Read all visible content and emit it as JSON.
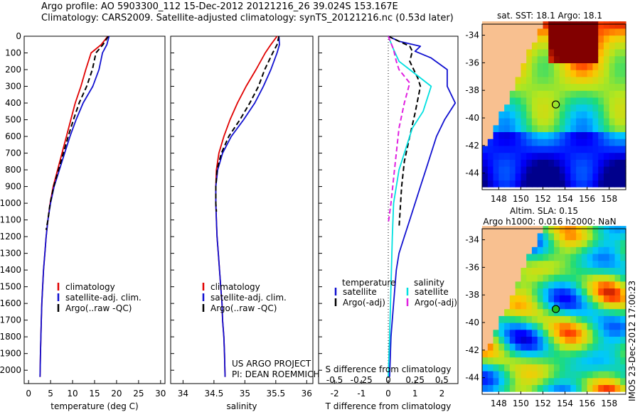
{
  "header": {
    "line1": "Argo profile: AO 5903300_112 15-Dec-2012 20121216_26 39.024S 153.167E",
    "line2": "Climatology: CARS2009. Satellite-adjusted climatology: synTS_20121216.nc (0.53d later)"
  },
  "colors": {
    "climatology": "#e00000",
    "satellite": "#1010d0",
    "argo": "#000000",
    "cyan": "#00e0e0",
    "magenta": "#e020e0",
    "land": "#f8c090"
  },
  "chart_data": [
    {
      "type": "line",
      "title": "",
      "xlabel": "temperature (deg C)",
      "xlim": [
        -1,
        31
      ],
      "ylim": [
        2080,
        0
      ],
      "xticks": [
        0,
        5,
        10,
        15,
        20,
        25,
        30
      ],
      "xtick_labels": [
        "0",
        "5",
        "10",
        "15",
        "20",
        "25",
        "30"
      ],
      "yticks": [
        0,
        100,
        200,
        300,
        400,
        500,
        600,
        700,
        800,
        900,
        1000,
        1100,
        1200,
        1300,
        1400,
        1500,
        1600,
        1700,
        1800,
        1900,
        2000
      ],
      "ytick_labels": [
        "0",
        "100",
        "200",
        "300",
        "400",
        "500",
        "600",
        "700",
        "800",
        "900",
        "1000",
        "1100",
        "1200",
        "1300",
        "1400",
        "1500",
        "1600",
        "1700",
        "1800",
        "1900",
        "2000"
      ],
      "legend": {
        "position": "bottom-left",
        "entries": [
          "climatology",
          "satellite-adj. clim.",
          "Argo(..raw -QC)"
        ]
      },
      "series": [
        {
          "name": "climatology",
          "color": "#e00000",
          "dash": "",
          "x": [
            18.0,
            16.5,
            14.2,
            13.0,
            11.9,
            10.6,
            9.6,
            8.6,
            7.6,
            6.6,
            5.6,
            4.9,
            4.4,
            4.0,
            3.7,
            3.4,
            3.2,
            3.0,
            2.9,
            2.8,
            2.7,
            2.6
          ],
          "y": [
            0,
            50,
            100,
            200,
            300,
            400,
            500,
            600,
            700,
            800,
            900,
            1000,
            1100,
            1200,
            1300,
            1400,
            1500,
            1600,
            1700,
            1800,
            1900,
            2040
          ]
        },
        {
          "name": "satellite-adj. clim.",
          "color": "#1010d0",
          "dash": "",
          "x": [
            18.3,
            17.8,
            16.8,
            16.0,
            14.6,
            12.4,
            10.8,
            9.4,
            8.2,
            7.0,
            5.8,
            5.0,
            4.4,
            4.0,
            3.7,
            3.4,
            3.2,
            3.0,
            2.9,
            2.8,
            2.7,
            2.6
          ],
          "y": [
            0,
            50,
            100,
            200,
            300,
            400,
            500,
            600,
            700,
            800,
            900,
            1000,
            1100,
            1200,
            1300,
            1400,
            1500,
            1600,
            1700,
            1800,
            1900,
            2040
          ]
        },
        {
          "name": "Argo(..raw -QC)",
          "color": "#000000",
          "dash": "7,4",
          "x": [
            18.1,
            16.9,
            15.3,
            14.5,
            13.2,
            11.5,
            10.2,
            9.0,
            7.9,
            6.8,
            5.7,
            4.9,
            4.4,
            4.0
          ],
          "y": [
            0,
            50,
            100,
            200,
            300,
            400,
            500,
            600,
            700,
            800,
            900,
            1000,
            1100,
            1160
          ]
        }
      ]
    },
    {
      "type": "line",
      "title": "",
      "xlabel": "salinity",
      "xlim": [
        33.8,
        36.1
      ],
      "ylim": [
        2080,
        0
      ],
      "xticks": [
        34,
        34.5,
        35,
        35.5,
        36
      ],
      "xtick_labels": [
        "34",
        "34.5",
        "35",
        "35.5",
        "36"
      ],
      "legend": {
        "position": "bottom-left",
        "entries": [
          "climatology",
          "satellite-adj. clim.",
          "Argo(..raw -QC)"
        ]
      },
      "annotation": [
        "US ARGO PROJECT",
        "PI: DEAN ROEMMICH"
      ],
      "series": [
        {
          "name": "climatology",
          "color": "#e00000",
          "dash": "",
          "x": [
            35.52,
            35.42,
            35.33,
            35.18,
            35.02,
            34.88,
            34.76,
            34.66,
            34.58,
            34.54,
            34.53,
            34.53,
            34.54,
            34.55,
            34.57,
            34.59,
            34.61,
            34.63,
            34.64,
            34.66,
            34.67,
            34.68
          ],
          "y": [
            0,
            50,
            100,
            200,
            300,
            400,
            500,
            600,
            700,
            800,
            900,
            1000,
            1100,
            1200,
            1300,
            1400,
            1500,
            1600,
            1700,
            1800,
            1900,
            2040
          ]
        },
        {
          "name": "satellite-adj. clim.",
          "color": "#1010d0",
          "dash": "",
          "x": [
            35.55,
            35.56,
            35.52,
            35.42,
            35.3,
            35.16,
            34.98,
            34.78,
            34.64,
            34.56,
            34.53,
            34.53,
            34.54,
            34.55,
            34.57,
            34.59,
            34.61,
            34.63,
            34.64,
            34.66,
            34.67,
            34.68
          ],
          "y": [
            0,
            50,
            100,
            200,
            300,
            400,
            500,
            600,
            700,
            800,
            900,
            1000,
            1100,
            1200,
            1300,
            1400,
            1500,
            1600,
            1700,
            1800,
            1900,
            2040
          ]
        },
        {
          "name": "Argo(..raw -QC)",
          "color": "#000000",
          "dash": "7,4",
          "x": [
            35.55,
            35.52,
            35.45,
            35.32,
            35.22,
            35.08,
            34.92,
            34.74,
            34.62,
            34.55,
            34.53,
            34.53,
            34.54
          ],
          "y": [
            0,
            50,
            100,
            200,
            300,
            400,
            500,
            600,
            700,
            800,
            900,
            1000,
            1050
          ]
        }
      ]
    },
    {
      "type": "line",
      "title": "",
      "xlabel": "T difference from climatology",
      "xlabel_top": "S difference from climatology",
      "xlim": [
        -2.6,
        2.6
      ],
      "ylim": [
        2080,
        0
      ],
      "xticks": [
        -2,
        -1,
        0,
        1,
        2
      ],
      "xtick_labels": [
        "-2",
        "-1",
        "0",
        "1",
        "2"
      ],
      "xticks_top": [
        -0.5,
        -0.25,
        0,
        0.25,
        0.5
      ],
      "xtick_labels_top": [
        "-0.5",
        "-0.25",
        "0",
        "0.25",
        "0.5"
      ],
      "legend": {
        "position": "bottom",
        "headers": [
          "temperature",
          "salinity"
        ],
        "entries": [
          "satellite",
          "Argo(-adj)",
          "satellite",
          "Argo(-adj)"
        ]
      },
      "series": [
        {
          "name": "T satellite",
          "color": "#1010d0",
          "dash": "",
          "x": [
            0,
            0.4,
            1.2,
            1.0,
            1.6,
            2.2,
            2.2,
            2.5,
            2.1,
            1.8,
            1.6,
            1.4,
            1.2,
            1.0,
            0.8,
            0.6,
            0.4,
            0.3,
            0.2,
            0.1,
            0.05
          ],
          "y": [
            0,
            30,
            60,
            90,
            130,
            200,
            300,
            400,
            500,
            600,
            700,
            800,
            900,
            1000,
            1100,
            1200,
            1300,
            1400,
            1600,
            1800,
            2040
          ]
        },
        {
          "name": "T Argo(-adj)",
          "color": "#000000",
          "dash": "7,4",
          "x": [
            0,
            0.4,
            0.8,
            0.9,
            0.8,
            1.1,
            1.2,
            1.0,
            0.8,
            0.6,
            0.5,
            0.4
          ],
          "y": [
            0,
            30,
            60,
            90,
            150,
            250,
            300,
            460,
            600,
            750,
            900,
            1150
          ]
        },
        {
          "name": "S satellite",
          "color": "#00e0e0",
          "dash": "",
          "x": [
            0,
            0.2,
            0.4,
            0.8,
            1.6,
            1.3,
            0.9,
            0.6,
            0.4,
            0.3,
            0.2,
            0.15,
            0.1,
            0.05,
            0.0
          ],
          "y": [
            0,
            80,
            150,
            200,
            300,
            450,
            550,
            700,
            800,
            900,
            1000,
            1200,
            1500,
            1800,
            2040
          ]
        },
        {
          "name": "S Argo(-adj)",
          "color": "#e020e0",
          "dash": "7,4",
          "x": [
            0,
            0.2,
            0.3,
            0.4,
            0.8,
            0.6,
            0.4,
            0.3,
            0.2,
            0.1,
            0.0
          ],
          "y": [
            0,
            80,
            150,
            200,
            280,
            400,
            550,
            700,
            850,
            1000,
            1120
          ]
        }
      ]
    },
    {
      "type": "heatmap",
      "title": "sat. SST: 18.1  Argo: 18.1",
      "xlim": [
        146.5,
        159.5
      ],
      "ylim": [
        -45.2,
        -33.2
      ],
      "xticks": [
        148,
        150,
        152,
        154,
        156,
        158
      ],
      "xtick_labels": [
        "148",
        "150",
        "152",
        "154",
        "156",
        "158"
      ],
      "yticks": [
        -34,
        -36,
        -38,
        -40,
        -42,
        -44
      ],
      "ytick_labels": [
        "-34",
        "-36",
        "-38",
        "-40",
        "-42",
        "-44"
      ],
      "marker": {
        "lon": 153.167,
        "lat": -39.024
      }
    },
    {
      "type": "heatmap",
      "title": [
        "Altim. SLA: 0.15",
        "Argo h1000: 0.016 h2000: NaN"
      ],
      "xlim": [
        146.5,
        159.5
      ],
      "ylim": [
        -45.2,
        -33.2
      ],
      "xticks": [
        148,
        150,
        152,
        154,
        156,
        158
      ],
      "xtick_labels": [
        "148",
        "150",
        "152",
        "154",
        "156",
        "158"
      ],
      "yticks": [
        -34,
        -36,
        -38,
        -40,
        -42,
        -44
      ],
      "ytick_labels": [
        "-34",
        "-36",
        "-38",
        "-40",
        "-42",
        "-44"
      ],
      "marker": {
        "lon": 153.167,
        "lat": -39.024
      },
      "side_note": "IMOS 23-Dec-2012 17:00:23"
    }
  ]
}
